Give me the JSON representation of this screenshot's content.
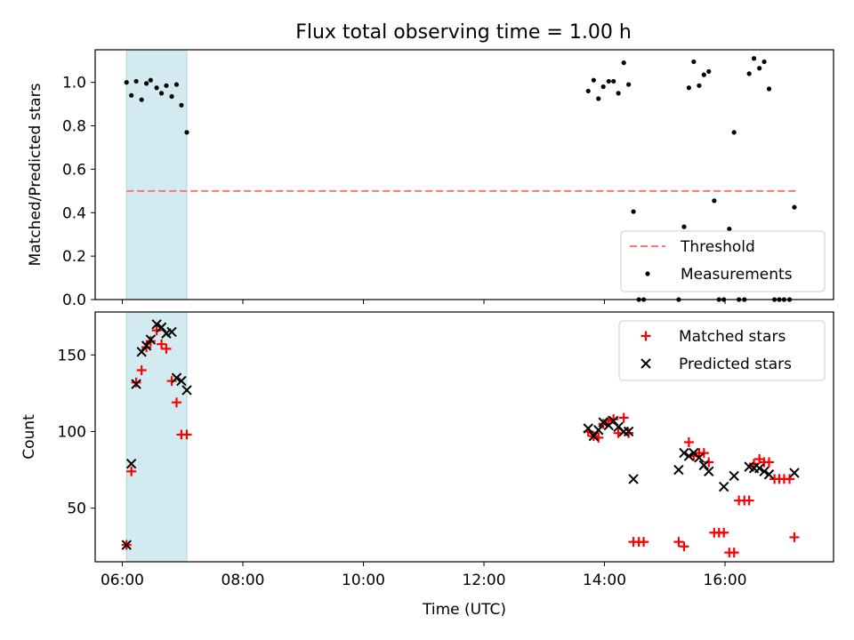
{
  "figure": {
    "title": "Flux total observing time = 1.00 h"
  },
  "chart_data": [
    {
      "type": "scatter",
      "panel": "top",
      "ylabel": "Matched/Predicted stars",
      "ylim": [
        0,
        1.15
      ],
      "yticks": [
        0.0,
        0.2,
        0.4,
        0.6,
        0.8,
        1.0
      ],
      "ytick_labels": [
        "0.0",
        "0.2",
        "0.4",
        "0.6",
        "0.8",
        "1.0"
      ],
      "xlim_hours": [
        5.55,
        17.8
      ],
      "highlight_span_hours": [
        6.07,
        7.07
      ],
      "highlight_color": "#d3ebf0",
      "legend_position": "lower right",
      "threshold": {
        "name": "Threshold",
        "value": 0.5,
        "x_range_hours": [
          6.07,
          17.17
        ],
        "color": "#ff7373",
        "style": "dashed"
      },
      "series": [
        {
          "name": "Measurements",
          "marker": "dot",
          "color": "#000000",
          "x_hours": [
            6.07,
            6.15,
            6.23,
            6.32,
            6.4,
            6.47,
            6.57,
            6.65,
            6.73,
            6.82,
            6.9,
            6.98,
            7.07,
            13.73,
            13.82,
            13.9,
            13.98,
            14.07,
            14.15,
            14.23,
            14.32,
            14.4,
            14.48,
            14.57,
            14.65,
            15.23,
            15.32,
            15.4,
            15.48,
            15.57,
            15.65,
            15.73,
            15.82,
            15.9,
            15.98,
            16.07,
            16.15,
            16.23,
            16.32,
            16.4,
            16.48,
            16.57,
            16.65,
            16.73,
            16.82,
            16.9,
            16.98,
            17.07,
            17.15
          ],
          "y": [
            1.0,
            0.94,
            1.005,
            0.92,
            0.995,
            1.01,
            0.975,
            0.95,
            0.985,
            0.935,
            0.99,
            0.895,
            0.77,
            0.96,
            1.01,
            0.925,
            0.98,
            1.005,
            1.005,
            0.95,
            1.09,
            0.99,
            0.405,
            0.0,
            0.0,
            0.0,
            0.335,
            0.975,
            1.095,
            0.985,
            1.035,
            1.05,
            0.455,
            0.0,
            0.0,
            0.325,
            0.77,
            0.0,
            0.0,
            1.04,
            1.11,
            1.065,
            1.095,
            0.97,
            0.0,
            0.0,
            0.0,
            0.0,
            0.425
          ]
        }
      ]
    },
    {
      "type": "scatter",
      "panel": "bottom",
      "xlabel": "Time (UTC)",
      "ylabel": "Count",
      "ylim": [
        15,
        178
      ],
      "yticks": [
        50,
        100,
        150
      ],
      "ytick_labels": [
        "50",
        "100",
        "150"
      ],
      "xlim_hours": [
        5.55,
        17.8
      ],
      "xticks_hours": [
        6,
        8,
        10,
        12,
        14,
        16
      ],
      "xtick_labels": [
        "06:00",
        "08:00",
        "10:00",
        "12:00",
        "14:00",
        "16:00"
      ],
      "highlight_span_hours": [
        6.07,
        7.07
      ],
      "highlight_color": "#d3ebf0",
      "legend_position": "upper right",
      "series": [
        {
          "name": "Matched stars",
          "marker": "plus",
          "color": "#ff0000",
          "x_hours": [
            6.07,
            6.15,
            6.23,
            6.32,
            6.4,
            6.47,
            6.57,
            6.65,
            6.73,
            6.82,
            6.9,
            6.98,
            7.07,
            13.73,
            13.82,
            13.9,
            13.98,
            14.07,
            14.15,
            14.23,
            14.32,
            14.4,
            14.48,
            14.57,
            14.65,
            15.23,
            15.32,
            15.4,
            15.48,
            15.57,
            15.65,
            15.73,
            15.82,
            15.9,
            15.98,
            16.07,
            16.15,
            16.23,
            16.32,
            16.4,
            16.48,
            16.57,
            16.65,
            16.73,
            16.82,
            16.9,
            16.98,
            17.07,
            17.15
          ],
          "y": [
            26,
            74,
            132,
            140,
            155,
            159,
            166,
            157,
            154,
            133,
            119,
            98,
            98,
            100,
            97,
            96,
            105,
            107,
            108,
            99,
            109,
            99,
            28,
            28,
            28,
            28,
            25,
            93,
            84,
            86,
            86,
            80,
            34,
            34,
            34,
            21,
            21,
            55,
            55,
            55,
            79,
            82,
            80,
            80,
            69,
            69,
            69,
            69,
            31
          ]
        },
        {
          "name": "Predicted stars",
          "marker": "x",
          "color": "#000000",
          "x_hours": [
            6.07,
            6.15,
            6.23,
            6.32,
            6.4,
            6.47,
            6.57,
            6.65,
            6.73,
            6.82,
            6.9,
            6.98,
            7.07,
            13.73,
            13.82,
            13.9,
            13.98,
            14.07,
            14.15,
            14.23,
            14.32,
            14.4,
            14.48,
            15.23,
            15.32,
            15.4,
            15.48,
            15.57,
            15.65,
            15.73,
            15.98,
            16.15,
            16.4,
            16.48,
            16.57,
            16.65,
            16.73,
            17.15
          ],
          "y": [
            26,
            79,
            131,
            152,
            156,
            160,
            170,
            168,
            164,
            165,
            135,
            133,
            127,
            102,
            97,
            101,
            106,
            104,
            107,
            103,
            100,
            100,
            69,
            75,
            86,
            84,
            86,
            83,
            78,
            74,
            64,
            71,
            77,
            76,
            76,
            74,
            72,
            73
          ]
        }
      ]
    }
  ]
}
